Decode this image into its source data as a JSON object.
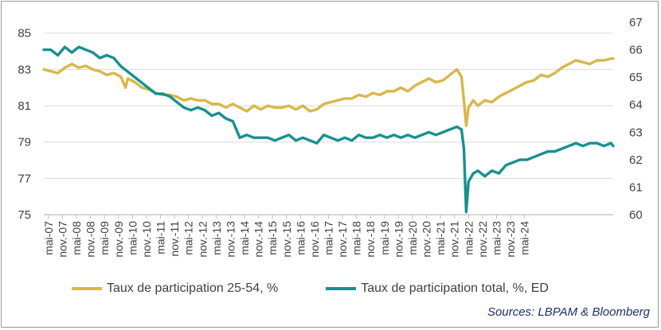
{
  "colors": {
    "series1": "#d8b84a",
    "series2": "#17918f",
    "grid": "#d9d9d9",
    "axis": "#bfbfbf",
    "text": "#404040",
    "source": "#1f2f6b"
  },
  "source": "Sources: LBPAM & Bloomberg",
  "chart_data": {
    "type": "line",
    "grid": true,
    "legend_position": "bottom",
    "x_tick_labels": [
      "mai-07",
      "nov.-07",
      "mai-08",
      "nov.-08",
      "mai-09",
      "nov.-09",
      "mai-10",
      "nov.-10",
      "mai-11",
      "nov.-11",
      "mai-12",
      "nov.-12",
      "mai-13",
      "nov.-13",
      "mai-14",
      "nov.-14",
      "mai-15",
      "nov.-15",
      "mai-16",
      "nov.-16",
      "mai-17",
      "nov.-17",
      "mai-18",
      "nov.-18",
      "mai-19",
      "nov.-19",
      "mai-20",
      "nov.-20",
      "mai-21",
      "nov.-21",
      "mai-22",
      "nov.-22",
      "mai-23",
      "nov.-23",
      "mai-24"
    ],
    "y_left": {
      "ticks": [
        75,
        77,
        79,
        81,
        83,
        85
      ],
      "ylim": [
        75,
        85.6
      ]
    },
    "y_right": {
      "ticks": [
        60,
        61,
        62,
        63,
        64,
        65,
        66,
        67
      ],
      "ylim": [
        60,
        67
      ]
    },
    "series": [
      {
        "name": "Taux de participation 25-54, %",
        "axis": "left",
        "points": [
          [
            0,
            83
          ],
          [
            3,
            82.9
          ],
          [
            6,
            82.8
          ],
          [
            9,
            83.1
          ],
          [
            12,
            83.3
          ],
          [
            15,
            83.1
          ],
          [
            18,
            83.2
          ],
          [
            21,
            83.0
          ],
          [
            24,
            82.9
          ],
          [
            27,
            82.7
          ],
          [
            30,
            82.8
          ],
          [
            33,
            82.6
          ],
          [
            35,
            82.0
          ],
          [
            36,
            82.5
          ],
          [
            39,
            82.3
          ],
          [
            42,
            82.0
          ],
          [
            45,
            81.9
          ],
          [
            48,
            81.7
          ],
          [
            51,
            81.6
          ],
          [
            54,
            81.6
          ],
          [
            57,
            81.5
          ],
          [
            60,
            81.3
          ],
          [
            63,
            81.4
          ],
          [
            66,
            81.3
          ],
          [
            69,
            81.3
          ],
          [
            72,
            81.1
          ],
          [
            75,
            81.1
          ],
          [
            78,
            80.9
          ],
          [
            81,
            81.1
          ],
          [
            84,
            80.9
          ],
          [
            87,
            80.7
          ],
          [
            90,
            81.0
          ],
          [
            93,
            80.8
          ],
          [
            96,
            81.0
          ],
          [
            99,
            80.9
          ],
          [
            102,
            80.9
          ],
          [
            105,
            81.0
          ],
          [
            108,
            80.8
          ],
          [
            111,
            81.0
          ],
          [
            114,
            80.7
          ],
          [
            117,
            80.8
          ],
          [
            120,
            81.1
          ],
          [
            123,
            81.2
          ],
          [
            126,
            81.3
          ],
          [
            129,
            81.4
          ],
          [
            132,
            81.4
          ],
          [
            135,
            81.6
          ],
          [
            138,
            81.5
          ],
          [
            141,
            81.7
          ],
          [
            144,
            81.6
          ],
          [
            147,
            81.8
          ],
          [
            150,
            81.8
          ],
          [
            153,
            82.0
          ],
          [
            156,
            81.8
          ],
          [
            159,
            82.1
          ],
          [
            162,
            82.3
          ],
          [
            165,
            82.5
          ],
          [
            168,
            82.3
          ],
          [
            171,
            82.4
          ],
          [
            174,
            82.7
          ],
          [
            177,
            83.0
          ],
          [
            179,
            82.6
          ],
          [
            180,
            81.3
          ],
          [
            181,
            79.9
          ],
          [
            182,
            80.9
          ],
          [
            184,
            81.3
          ],
          [
            186,
            81.0
          ],
          [
            189,
            81.3
          ],
          [
            192,
            81.2
          ],
          [
            195,
            81.5
          ],
          [
            198,
            81.7
          ],
          [
            201,
            81.9
          ],
          [
            204,
            82.1
          ],
          [
            207,
            82.3
          ],
          [
            210,
            82.4
          ],
          [
            213,
            82.7
          ],
          [
            216,
            82.6
          ],
          [
            219,
            82.8
          ],
          [
            222,
            83.1
          ],
          [
            225,
            83.3
          ],
          [
            228,
            83.5
          ],
          [
            231,
            83.4
          ],
          [
            234,
            83.3
          ],
          [
            237,
            83.5
          ],
          [
            240,
            83.5
          ],
          [
            243,
            83.6
          ],
          [
            244,
            83.6
          ]
        ]
      },
      {
        "name": "Taux de participation total, %, ED",
        "axis": "right",
        "points": [
          [
            0,
            66.0
          ],
          [
            3,
            66.0
          ],
          [
            6,
            65.8
          ],
          [
            8,
            66.0
          ],
          [
            9,
            66.1
          ],
          [
            12,
            65.9
          ],
          [
            15,
            66.1
          ],
          [
            18,
            66.0
          ],
          [
            21,
            65.9
          ],
          [
            24,
            65.7
          ],
          [
            27,
            65.8
          ],
          [
            30,
            65.7
          ],
          [
            33,
            65.4
          ],
          [
            36,
            65.2
          ],
          [
            39,
            65.0
          ],
          [
            42,
            64.8
          ],
          [
            45,
            64.6
          ],
          [
            48,
            64.4
          ],
          [
            51,
            64.4
          ],
          [
            54,
            64.3
          ],
          [
            57,
            64.1
          ],
          [
            60,
            63.9
          ],
          [
            63,
            63.8
          ],
          [
            66,
            63.9
          ],
          [
            69,
            63.8
          ],
          [
            72,
            63.6
          ],
          [
            75,
            63.7
          ],
          [
            78,
            63.5
          ],
          [
            81,
            63.4
          ],
          [
            84,
            62.8
          ],
          [
            87,
            62.9
          ],
          [
            90,
            62.8
          ],
          [
            93,
            62.8
          ],
          [
            96,
            62.8
          ],
          [
            99,
            62.7
          ],
          [
            102,
            62.8
          ],
          [
            105,
            62.9
          ],
          [
            108,
            62.7
          ],
          [
            111,
            62.8
          ],
          [
            114,
            62.7
          ],
          [
            117,
            62.6
          ],
          [
            120,
            62.9
          ],
          [
            123,
            62.8
          ],
          [
            126,
            62.7
          ],
          [
            129,
            62.8
          ],
          [
            132,
            62.7
          ],
          [
            135,
            62.9
          ],
          [
            138,
            62.8
          ],
          [
            141,
            62.8
          ],
          [
            144,
            62.9
          ],
          [
            147,
            62.8
          ],
          [
            150,
            62.9
          ],
          [
            153,
            62.8
          ],
          [
            156,
            62.9
          ],
          [
            159,
            62.8
          ],
          [
            162,
            62.9
          ],
          [
            165,
            63.0
          ],
          [
            168,
            62.9
          ],
          [
            171,
            63.0
          ],
          [
            174,
            63.1
          ],
          [
            177,
            63.2
          ],
          [
            179,
            63.1
          ],
          [
            180,
            62.4
          ],
          [
            181,
            60.1
          ],
          [
            182,
            61.2
          ],
          [
            184,
            61.5
          ],
          [
            186,
            61.6
          ],
          [
            189,
            61.4
          ],
          [
            192,
            61.6
          ],
          [
            195,
            61.5
          ],
          [
            198,
            61.8
          ],
          [
            201,
            61.9
          ],
          [
            204,
            62.0
          ],
          [
            207,
            62.0
          ],
          [
            210,
            62.1
          ],
          [
            213,
            62.2
          ],
          [
            216,
            62.3
          ],
          [
            219,
            62.3
          ],
          [
            222,
            62.4
          ],
          [
            225,
            62.5
          ],
          [
            228,
            62.6
          ],
          [
            231,
            62.5
          ],
          [
            234,
            62.6
          ],
          [
            237,
            62.6
          ],
          [
            240,
            62.5
          ],
          [
            243,
            62.6
          ],
          [
            244,
            62.5
          ]
        ]
      }
    ]
  }
}
